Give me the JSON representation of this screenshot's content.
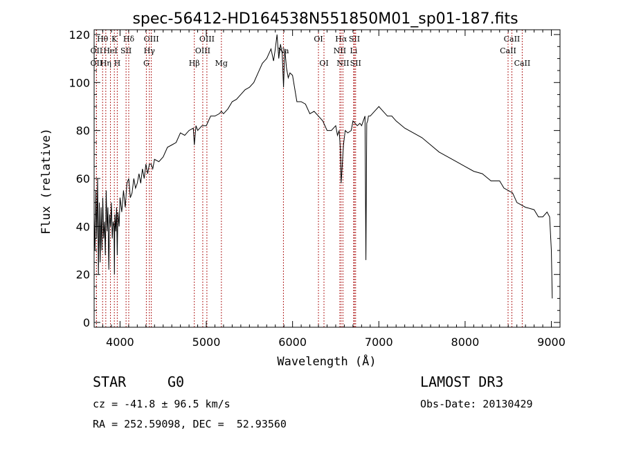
{
  "chart_data": {
    "type": "line",
    "title": "spec-56412-HD164538N551850M01_sp01-187.fits",
    "xlabel": "Wavelength (Å)",
    "ylabel": "Flux (relative)",
    "xlim": [
      3700,
      9100
    ],
    "ylim": [
      -2,
      122
    ],
    "xticks": [
      4000,
      5000,
      6000,
      7000,
      8000,
      9000
    ],
    "yticks": [
      0,
      20,
      40,
      60,
      80,
      100,
      120
    ],
    "grid": false,
    "series": [
      {
        "name": "spectrum",
        "x": [
          3700,
          3710,
          3720,
          3730,
          3740,
          3750,
          3760,
          3770,
          3780,
          3790,
          3800,
          3810,
          3820,
          3830,
          3840,
          3850,
          3860,
          3870,
          3880,
          3890,
          3900,
          3910,
          3920,
          3930,
          3935,
          3940,
          3950,
          3960,
          3968,
          3975,
          3990,
          4000,
          4020,
          4040,
          4060,
          4080,
          4101,
          4120,
          4140,
          4160,
          4180,
          4200,
          4220,
          4240,
          4260,
          4280,
          4300,
          4320,
          4340,
          4360,
          4380,
          4400,
          4450,
          4500,
          4550,
          4600,
          4650,
          4700,
          4750,
          4800,
          4850,
          4861,
          4880,
          4900,
          4950,
          5000,
          5050,
          5100,
          5150,
          5175,
          5200,
          5250,
          5300,
          5350,
          5400,
          5450,
          5500,
          5550,
          5600,
          5650,
          5700,
          5750,
          5780,
          5800,
          5820,
          5840,
          5860,
          5880,
          5895,
          5910,
          5930,
          5950,
          5970,
          6000,
          6050,
          6100,
          6150,
          6200,
          6250,
          6300,
          6350,
          6400,
          6450,
          6500,
          6520,
          6540,
          6555,
          6563,
          6570,
          6590,
          6610,
          6640,
          6680,
          6700,
          6750,
          6780,
          6800,
          6820,
          6840,
          6850,
          6860,
          6870,
          6880,
          6900,
          6950,
          7000,
          7050,
          7100,
          7150,
          7200,
          7300,
          7400,
          7500,
          7600,
          7700,
          7800,
          7900,
          8000,
          8100,
          8200,
          8300,
          8400,
          8450,
          8500,
          8550,
          8600,
          8700,
          8800,
          8850,
          8900,
          8950,
          8980,
          9000,
          9010
        ],
        "values": [
          45,
          30,
          55,
          35,
          60,
          20,
          50,
          25,
          48,
          30,
          52,
          35,
          42,
          28,
          55,
          38,
          48,
          22,
          45,
          40,
          50,
          35,
          42,
          40,
          20,
          45,
          38,
          48,
          28,
          46,
          40,
          52,
          46,
          55,
          48,
          58,
          60,
          52,
          54,
          60,
          56,
          58,
          62,
          58,
          64,
          60,
          66,
          62,
          66,
          66,
          64,
          68,
          67,
          69,
          73,
          74,
          75,
          79,
          78,
          80,
          81,
          74,
          82,
          80,
          82,
          82,
          86,
          86,
          87,
          88,
          87,
          89,
          92,
          93,
          95,
          97,
          98,
          100,
          104,
          108,
          110,
          114,
          109,
          114,
          120,
          110,
          116,
          112,
          98,
          114,
          106,
          102,
          104,
          103,
          92,
          92,
          91,
          87,
          88,
          86,
          84,
          80,
          80,
          82,
          78,
          80,
          72,
          58,
          62,
          74,
          80,
          79,
          80,
          84,
          82,
          83,
          82,
          84,
          86,
          26,
          83,
          84,
          86,
          86,
          88,
          90,
          88,
          86,
          86,
          84,
          81,
          79,
          77,
          74,
          71,
          69,
          67,
          65,
          63,
          62,
          59,
          59,
          56,
          55,
          54,
          50,
          48,
          47,
          44,
          44,
          46,
          44,
          30,
          10
        ]
      }
    ],
    "line_markers": [
      {
        "label": "Hθ",
        "x": 3798,
        "row": 1
      },
      {
        "label": "OII",
        "x": 3727,
        "row": 2
      },
      {
        "label": "OII",
        "x": 3727,
        "row": 3
      },
      {
        "label": "K",
        "x": 3934,
        "row": 1
      },
      {
        "label": "HeI",
        "x": 3889,
        "row": 2
      },
      {
        "label": "Hη",
        "x": 3835,
        "row": 3
      },
      {
        "label": "Hδ",
        "x": 4101,
        "row": 1
      },
      {
        "label": "SII",
        "x": 4070,
        "row": 2
      },
      {
        "label": "H",
        "x": 3968,
        "row": 3
      },
      {
        "label": "OIII",
        "x": 4363,
        "row": 1
      },
      {
        "label": "Hγ",
        "x": 4340,
        "row": 2
      },
      {
        "label": "G",
        "x": 4305,
        "row": 3
      },
      {
        "label": "OIII",
        "x": 5007,
        "row": 1
      },
      {
        "label": "OIII",
        "x": 4959,
        "row": 2
      },
      {
        "label": "Hβ",
        "x": 4861,
        "row": 3
      },
      {
        "label": "Mg",
        "x": 5175,
        "row": 3
      },
      {
        "label": "Na",
        "x": 5894,
        "row": 2
      },
      {
        "label": "OI",
        "x": 6300,
        "row": 1
      },
      {
        "label": "OI",
        "x": 6364,
        "row": 3
      },
      {
        "label": "Hα",
        "x": 6563,
        "row": 1
      },
      {
        "label": "SII",
        "x": 6717,
        "row": 1
      },
      {
        "label": "NII",
        "x": 6548,
        "row": 2
      },
      {
        "label": "Li",
        "x": 6708,
        "row": 2
      },
      {
        "label": "NII",
        "x": 6584,
        "row": 3
      },
      {
        "label": "SII",
        "x": 6731,
        "row": 3
      },
      {
        "label": "CaII",
        "x": 8542,
        "row": 1
      },
      {
        "label": "CaII",
        "x": 8498,
        "row": 2
      },
      {
        "label": "CaII",
        "x": 8662,
        "row": 3
      }
    ]
  },
  "info": {
    "object_class": "STAR",
    "subclass": "G0",
    "survey": "LAMOST DR3",
    "redshift": "cz = -41.8 ± 96.5 km/s",
    "obs_date": "Obs-Date: 20130429",
    "coords": "RA = 252.59098, DEC =  52.93560"
  },
  "colors": {
    "line": "#000000",
    "marker": "#b22222",
    "background": "#ffffff"
  }
}
